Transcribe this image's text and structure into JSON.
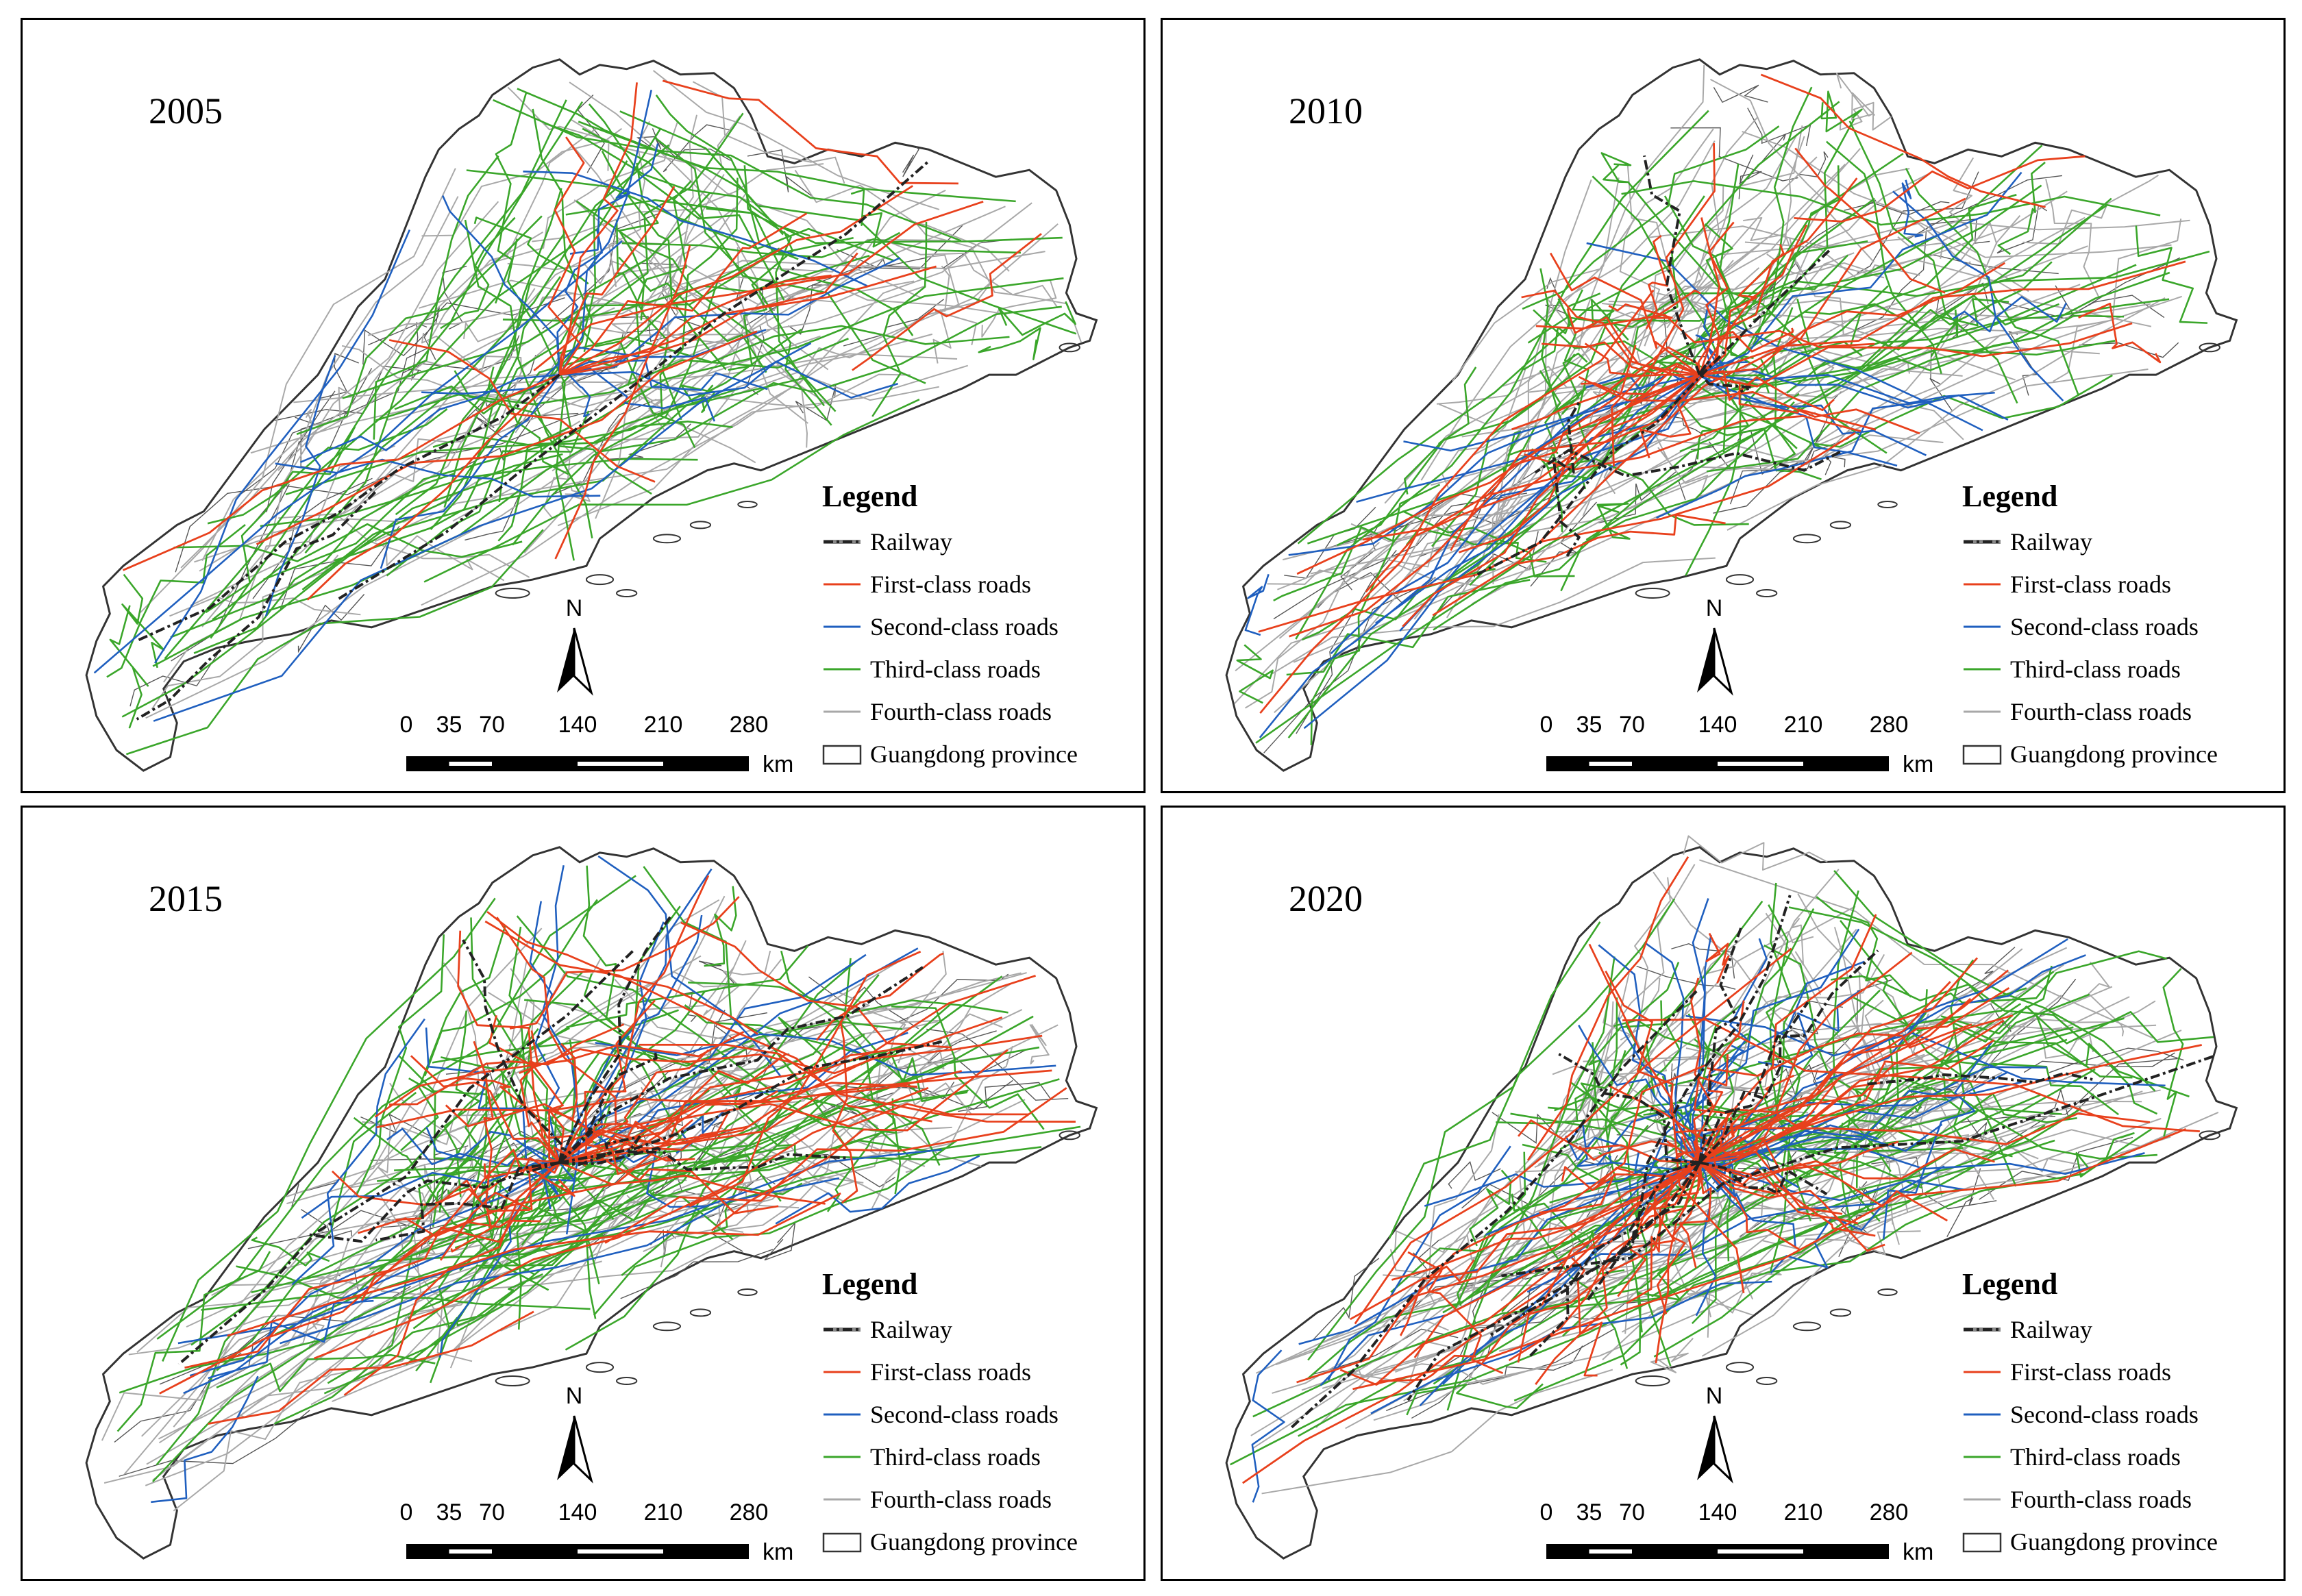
{
  "colors": {
    "railway": "#222222",
    "first_class": "#e8401c",
    "second_class": "#1f5fbf",
    "third_class": "#3aa62a",
    "fourth_class": "#a8a8a8",
    "boundary": "#333333"
  },
  "panels": [
    {
      "year": "2005"
    },
    {
      "year": "2010"
    },
    {
      "year": "2015"
    },
    {
      "year": "2020"
    }
  ],
  "legend": {
    "title": "Legend",
    "items": [
      {
        "key": "railway",
        "label": "Railway"
      },
      {
        "key": "first_class",
        "label": "First-class roads"
      },
      {
        "key": "second_class",
        "label": "Second-class roads"
      },
      {
        "key": "third_class",
        "label": "Third-class roads"
      },
      {
        "key": "fourth_class",
        "label": "Fourth-class roads"
      },
      {
        "key": "boundary",
        "label": "Guangdong province"
      }
    ]
  },
  "scale": {
    "ticks": [
      "0",
      "35",
      "70",
      "140",
      "210",
      "280"
    ],
    "tick_values": [
      0,
      35,
      70,
      140,
      210,
      280
    ],
    "unit": "km"
  },
  "north_label": "N"
}
